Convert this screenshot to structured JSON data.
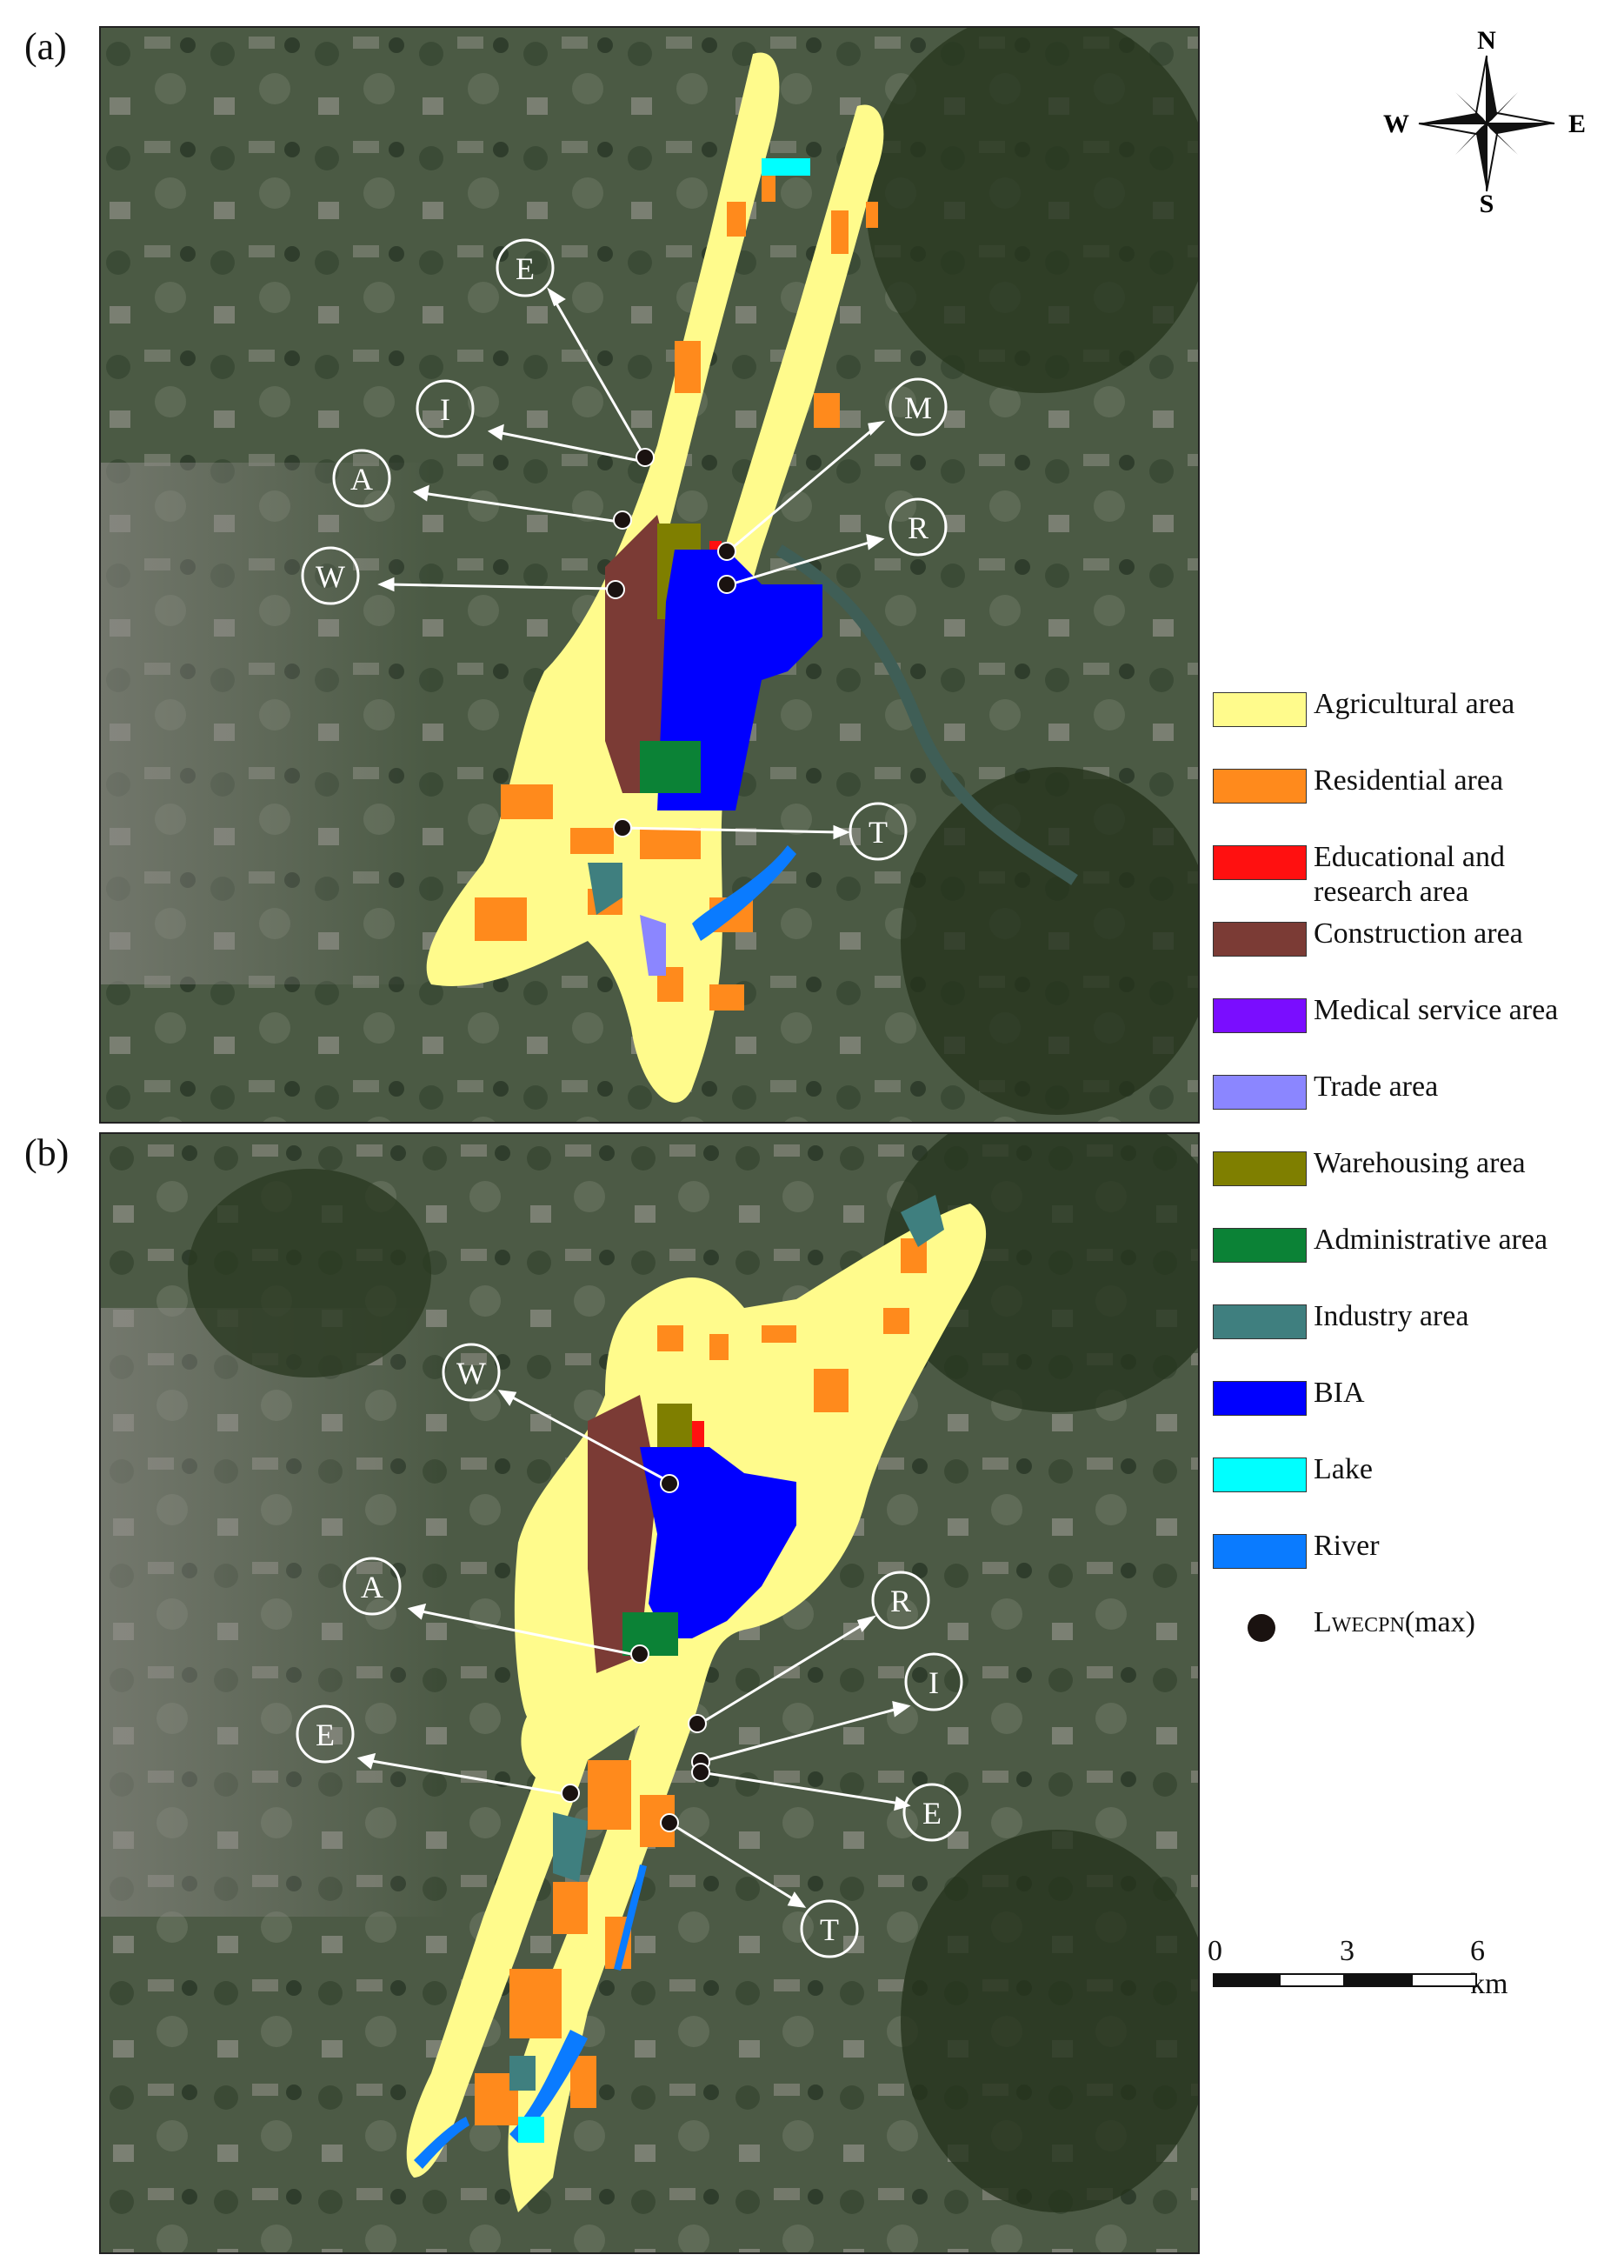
{
  "panels": [
    {
      "id": "a",
      "label": "(a)"
    },
    {
      "id": "b",
      "label": "(b)"
    }
  ],
  "compass": {
    "n": "N",
    "s": "S",
    "e": "E",
    "w": "W"
  },
  "legend": [
    {
      "label": "Agricultural area",
      "color": "#fffb8c"
    },
    {
      "label": "Residential area",
      "color": "#ff8a1c"
    },
    {
      "label": "Educational and research area",
      "color": "#ff1010"
    },
    {
      "label": "Construction area",
      "color": "#7b3b35"
    },
    {
      "label": "Medical service area",
      "color": "#7a0dff"
    },
    {
      "label": "Trade area",
      "color": "#8b86ff"
    },
    {
      "label": "Warehousing area",
      "color": "#7f7f00"
    },
    {
      "label": "Administrative area",
      "color": "#0b8236"
    },
    {
      "label": "Industry area",
      "color": "#3f7f7f"
    },
    {
      "label": "BIA",
      "color": "#0000ff"
    },
    {
      "label": "Lake",
      "color": "#00ffff"
    },
    {
      "label": "River",
      "color": "#0a7bff"
    }
  ],
  "point_legend": {
    "label_main": "L",
    "label_sub": "WECPN",
    "label_tail": "(max)",
    "color": "#1a1210"
  },
  "callouts_a": [
    "E",
    "I",
    "A",
    "W",
    "M",
    "R",
    "T"
  ],
  "callouts_b": [
    "W",
    "A",
    "E",
    "R",
    "I",
    "E",
    "T"
  ],
  "scale": {
    "ticks": [
      "0",
      "3",
      "6 km"
    ]
  }
}
